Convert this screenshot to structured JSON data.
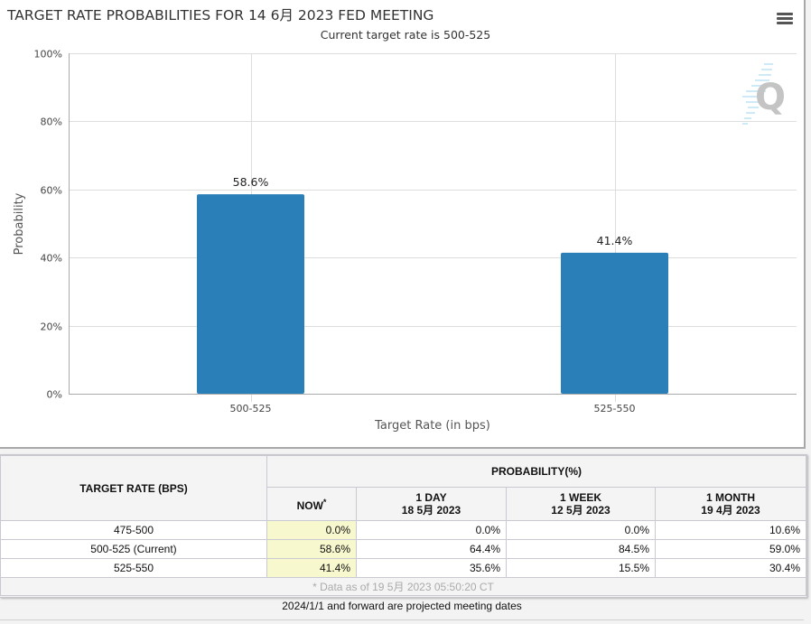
{
  "chart": {
    "title": "TARGET RATE PROBABILITIES FOR 14 6月 2023 FED MEETING",
    "subtitle": "Current target rate is 500-525",
    "menu_icon": "hamburger-menu-icon",
    "watermark_icon": "q-logo-icon"
  },
  "chart_data": {
    "type": "bar",
    "title": "TARGET RATE PROBABILITIES FOR 14 6月 2023 FED MEETING",
    "subtitle": "Current target rate is 500-525",
    "categories": [
      "500-525",
      "525-550"
    ],
    "values": [
      58.6,
      41.4
    ],
    "data_labels": [
      "58.6%",
      "41.4%"
    ],
    "xlabel": "Target Rate (in bps)",
    "ylabel": "Probability",
    "ylim": [
      0,
      100
    ],
    "yticks": [
      0,
      20,
      40,
      60,
      80,
      100
    ],
    "ytick_labels": [
      "0%",
      "20%",
      "40%",
      "60%",
      "80%",
      "100%"
    ],
    "grid": true,
    "legend": "none",
    "bar_color": "#2b7fb8"
  },
  "table": {
    "target_header": "TARGET RATE (BPS)",
    "prob_header": "PROBABILITY(%)",
    "columns": [
      {
        "label": "NOW",
        "sup": "*",
        "date": ""
      },
      {
        "label": "1 DAY",
        "date": "18 5月 2023"
      },
      {
        "label": "1 WEEK",
        "date": "12 5月 2023"
      },
      {
        "label": "1 MONTH",
        "date": "19 4月 2023"
      }
    ],
    "rows": [
      {
        "rate": "475-500",
        "values": [
          "0.0%",
          "0.0%",
          "0.0%",
          "10.6%"
        ]
      },
      {
        "rate": "500-525 (Current)",
        "values": [
          "58.6%",
          "64.4%",
          "84.5%",
          "59.0%"
        ]
      },
      {
        "rate": "525-550",
        "values": [
          "41.4%",
          "35.6%",
          "15.5%",
          "30.4%"
        ]
      }
    ],
    "footnote": "* Data as of 19 5月 2023 05:50:20 CT"
  },
  "note": "2024/1/1 and forward are projected meeting dates"
}
